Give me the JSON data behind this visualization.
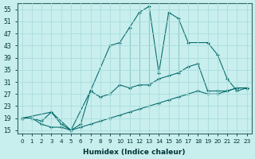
{
  "xlabel": "Humidex (Indice chaleur)",
  "bg_color": "#c8eeee",
  "grid_color": "#aadddd",
  "line_color": "#006666",
  "xlim": [
    -0.5,
    23.5
  ],
  "ylim": [
    14,
    57
  ],
  "xticks": [
    0,
    1,
    2,
    3,
    4,
    5,
    6,
    7,
    8,
    9,
    10,
    11,
    12,
    13,
    14,
    15,
    16,
    17,
    18,
    19,
    20,
    21,
    22,
    23
  ],
  "yticks": [
    15,
    19,
    23,
    27,
    31,
    35,
    39,
    43,
    47,
    51,
    55
  ],
  "line_bottom_x": [
    0,
    1,
    2,
    3,
    4,
    5,
    6,
    7,
    8,
    9,
    10,
    11,
    12,
    13,
    14,
    15,
    16,
    17,
    18,
    19,
    20,
    21,
    22,
    23
  ],
  "line_bottom_y": [
    19,
    19,
    17,
    16,
    16,
    15,
    16,
    17,
    18,
    19,
    20,
    21,
    22,
    23,
    24,
    25,
    26,
    27,
    28,
    27,
    27,
    28,
    29,
    29
  ],
  "line_mid_x": [
    0,
    1,
    2,
    3,
    4,
    5,
    6,
    7,
    8,
    9,
    10,
    11,
    12,
    13,
    14,
    15,
    16,
    17,
    18,
    19,
    20,
    21,
    22,
    23
  ],
  "line_mid_y": [
    19,
    19,
    18,
    21,
    17,
    15,
    17,
    28,
    26,
    27,
    30,
    29,
    30,
    30,
    32,
    33,
    34,
    36,
    37,
    28,
    28,
    28,
    29,
    29
  ],
  "line_upper_x": [
    0,
    3,
    5,
    7,
    9,
    10,
    11,
    12,
    13,
    14,
    15,
    16,
    17,
    19,
    20,
    21,
    22,
    23
  ],
  "line_upper_y": [
    19,
    21,
    15,
    28,
    43,
    44,
    49,
    54,
    56,
    34,
    54,
    52,
    44,
    44,
    40,
    32,
    28,
    29
  ],
  "spikes_x": [
    10,
    11,
    12,
    13,
    15,
    16
  ],
  "spikes_low_y": [
    30,
    29,
    30,
    30,
    33,
    34
  ],
  "spikes_high_y": [
    44,
    49,
    54,
    56,
    54,
    52
  ]
}
